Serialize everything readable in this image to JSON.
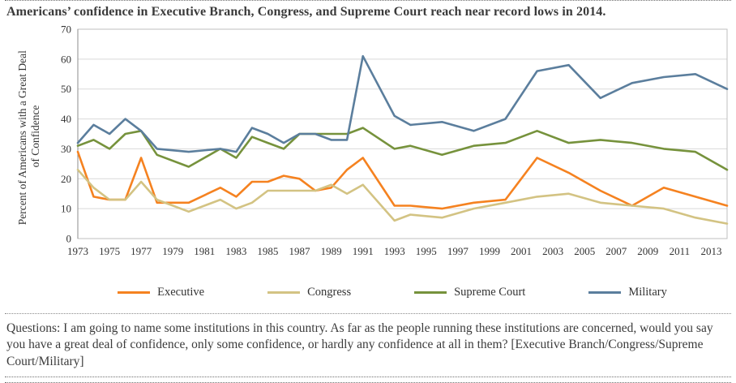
{
  "chart_data": {
    "type": "line",
    "title": "Americans’ confidence in Executive Branch, Congress, and Supreme Court reach near record lows in 2014.",
    "ylabel": "Percent of Americans with a Great Deal of Confidence",
    "ylabel_line1": "Percent of Americans with a Great Deal",
    "ylabel_line2": "of Confidence",
    "xlabel": "",
    "xlim": [
      1973,
      2014
    ],
    "ylim": [
      0,
      70
    ],
    "y_ticks": [
      0,
      10,
      20,
      30,
      40,
      50,
      60,
      70
    ],
    "x_ticks": [
      1973,
      1975,
      1977,
      1979,
      1981,
      1983,
      1985,
      1987,
      1989,
      1991,
      1993,
      1995,
      1997,
      1999,
      2001,
      2003,
      2005,
      2007,
      2009,
      2011,
      2013
    ],
    "grid": "horizontal",
    "legend_position": "bottom",
    "x": [
      1973,
      1974,
      1975,
      1976,
      1977,
      1978,
      1980,
      1982,
      1983,
      1984,
      1985,
      1986,
      1987,
      1988,
      1989,
      1990,
      1991,
      1993,
      1994,
      1996,
      1998,
      2000,
      2002,
      2004,
      2006,
      2008,
      2010,
      2012,
      2014
    ],
    "series": [
      {
        "name": "Executive",
        "color": "#f58220",
        "values": [
          29,
          14,
          13,
          13,
          27,
          12,
          12,
          17,
          14,
          19,
          19,
          21,
          20,
          16,
          17,
          23,
          27,
          11,
          11,
          10,
          12,
          13,
          27,
          22,
          16,
          11,
          17,
          14,
          11
        ]
      },
      {
        "name": "Congress",
        "color": "#d3c383",
        "values": [
          23,
          17,
          13,
          13,
          19,
          13,
          9,
          13,
          10,
          12,
          16,
          16,
          16,
          16,
          18,
          15,
          18,
          6,
          8,
          7,
          10,
          12,
          14,
          15,
          12,
          11,
          10,
          7,
          5
        ]
      },
      {
        "name": "Supreme Court",
        "color": "#76923c",
        "values": [
          31,
          33,
          30,
          35,
          36,
          28,
          24,
          30,
          27,
          34,
          32,
          30,
          35,
          35,
          35,
          35,
          37,
          30,
          31,
          28,
          31,
          32,
          36,
          32,
          33,
          32,
          30,
          29,
          23
        ]
      },
      {
        "name": "Military",
        "color": "#5b7e9d",
        "values": [
          32,
          38,
          35,
          40,
          36,
          30,
          29,
          30,
          29,
          37,
          35,
          32,
          35,
          35,
          33,
          33,
          61,
          41,
          38,
          39,
          36,
          40,
          56,
          58,
          47,
          52,
          54,
          55,
          50
        ]
      }
    ]
  },
  "footer": {
    "question": "Questions: I am going to name some institutions in this country. As far as the people running these institutions are concerned, would you say you have a great deal of confidence, only some confidence, or hardly any confidence at all in them? [Executive Branch/Congress/Supreme Court/Military]"
  },
  "style": {
    "gridline_color": "#d9d9d9",
    "plot_border_color": "#bfbfbf",
    "axis_line_color": "#8c8c8c"
  }
}
